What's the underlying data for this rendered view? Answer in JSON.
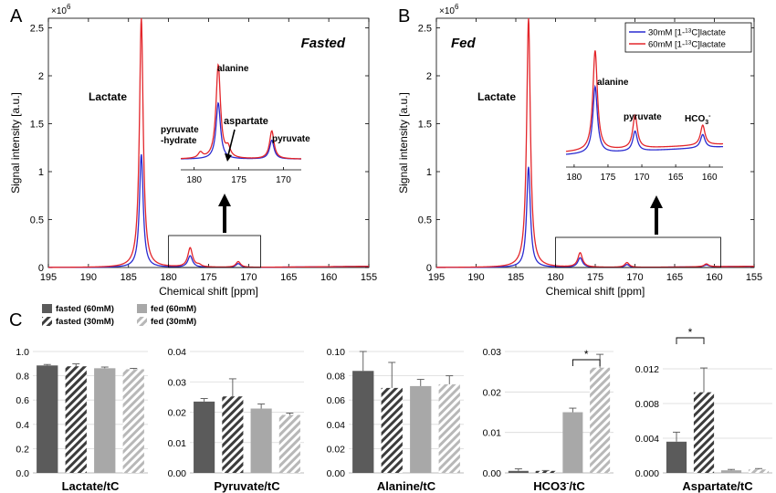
{
  "chart_data": [
    {
      "type": "line",
      "panel_letter": "A",
      "condition_label": "Fasted",
      "xlabel": "Chemical shift [ppm]",
      "ylabel": "Signal intensity [a.u.]",
      "y_exponent": "×10",
      "y_exponent_power": "6",
      "x_reversed": true,
      "xlim": [
        195,
        155
      ],
      "ylim": [
        0,
        2.6
      ],
      "xticks": [
        "195",
        "190",
        "185",
        "180",
        "175",
        "170",
        "165",
        "160",
        "155"
      ],
      "yticks": [
        "0",
        "0.5",
        "1",
        "1.5",
        "2",
        "2.5"
      ],
      "peak_label": "Lactate",
      "inset": {
        "xticks": [
          "180",
          "175",
          "170"
        ],
        "labels": [
          "alanine",
          "pyruvate\n-hydrate",
          "aspartate",
          "pyruvate"
        ]
      },
      "series": [
        {
          "name": "60mM",
          "color": "#e3262b",
          "peaks": [
            {
              "ppm": 183.4,
              "height": 2.6
            },
            {
              "ppm": 177.3,
              "height": 0.2
            },
            {
              "ppm": 176.2,
              "height": 0.02
            },
            {
              "ppm": 171.3,
              "height": 0.06
            }
          ]
        },
        {
          "name": "30mM",
          "color": "#2a2bd0",
          "peaks": [
            {
              "ppm": 183.4,
              "height": 1.18
            },
            {
              "ppm": 177.3,
              "height": 0.12
            },
            {
              "ppm": 171.3,
              "height": 0.04
            }
          ]
        }
      ]
    },
    {
      "type": "line",
      "panel_letter": "B",
      "condition_label": "Fed",
      "xlabel": "Chemical shift [ppm]",
      "ylabel": "Signal intensity [a.u.]",
      "y_exponent": "×10",
      "y_exponent_power": "6",
      "x_reversed": true,
      "xlim": [
        195,
        155
      ],
      "ylim": [
        0,
        2.6
      ],
      "xticks": [
        "195",
        "190",
        "185",
        "180",
        "175",
        "170",
        "165",
        "160",
        "155"
      ],
      "yticks": [
        "0",
        "0.5",
        "1",
        "1.5",
        "2",
        "2.5"
      ],
      "peak_label": "Lactate",
      "legend": [
        "30mM [1-13C]lactate",
        "60mM [1-13C]lactate"
      ],
      "inset": {
        "xticks": [
          "180",
          "175",
          "170",
          "165",
          "160"
        ],
        "labels": [
          "alanine",
          "pyruvate",
          "HCO3-"
        ]
      },
      "series": [
        {
          "name": "30mM [1-13C]lactate",
          "color": "#2a2bd0",
          "peaks": [
            {
              "ppm": 183.4,
              "height": 1.05
            },
            {
              "ppm": 176.9,
              "height": 0.1
            },
            {
              "ppm": 171.0,
              "height": 0.03
            },
            {
              "ppm": 161.0,
              "height": 0.02
            }
          ]
        },
        {
          "name": "60mM [1-13C]lactate",
          "color": "#e3262b",
          "peaks": [
            {
              "ppm": 183.4,
              "height": 2.6
            },
            {
              "ppm": 176.9,
              "height": 0.15
            },
            {
              "ppm": 171.0,
              "height": 0.05
            },
            {
              "ppm": 161.0,
              "height": 0.03
            }
          ]
        }
      ]
    },
    {
      "type": "bar",
      "panel_letter": "C",
      "legend": [
        "fasted (60mM)",
        "fasted (30mM)",
        "fed (60mM)",
        "fed (30mM)"
      ],
      "subplots": [
        {
          "xlabel": "Lactate/tC",
          "ylim": [
            0,
            1.0
          ],
          "yticks": [
            "0.0",
            "0.2",
            "0.4",
            "0.6",
            "0.8",
            "1.0"
          ],
          "values": [
            0.885,
            0.878,
            0.862,
            0.854
          ],
          "errors": [
            0.008,
            0.02,
            0.01,
            0.007
          ],
          "significance": null
        },
        {
          "xlabel": "Pyruvate/tC",
          "ylim": [
            0,
            0.04
          ],
          "yticks": [
            "0.00",
            "0.01",
            "0.02",
            "0.03",
            "0.04"
          ],
          "values": [
            0.0235,
            0.0252,
            0.0212,
            0.0191
          ],
          "errors": [
            0.001,
            0.0058,
            0.0015,
            0.0006
          ],
          "significance": null
        },
        {
          "xlabel": "Alanine/tC",
          "ylim": [
            0,
            0.1
          ],
          "yticks": [
            "0.00",
            "0.02",
            "0.04",
            "0.06",
            "0.08",
            "0.10"
          ],
          "values": [
            0.084,
            0.07,
            0.0715,
            0.073
          ],
          "errors": [
            0.016,
            0.021,
            0.0055,
            0.007
          ],
          "significance": null
        },
        {
          "xlabel": "HCO3-/tC",
          "ylim": [
            0,
            0.03
          ],
          "yticks": [
            "0.00",
            "0.01",
            "0.02",
            "0.03"
          ],
          "values": [
            0.0005,
            0.0005,
            0.015,
            0.026
          ],
          "errors": [
            0.0005,
            0.0001,
            0.001,
            0.0033
          ],
          "significance": {
            "bars": [
              2,
              3
            ],
            "label": "*"
          }
        },
        {
          "xlabel": "Aspartate/tC",
          "ylim": [
            0,
            0.014
          ],
          "yticks": [
            "0.000",
            "0.004",
            "0.008",
            "0.012"
          ],
          "values": [
            0.0036,
            0.0093,
            0.0003,
            0.0004
          ],
          "errors": [
            0.0011,
            0.0028,
            0.0001,
            0.0001
          ],
          "significance": {
            "bars": [
              0,
              1
            ],
            "label": "*"
          }
        }
      ]
    }
  ]
}
